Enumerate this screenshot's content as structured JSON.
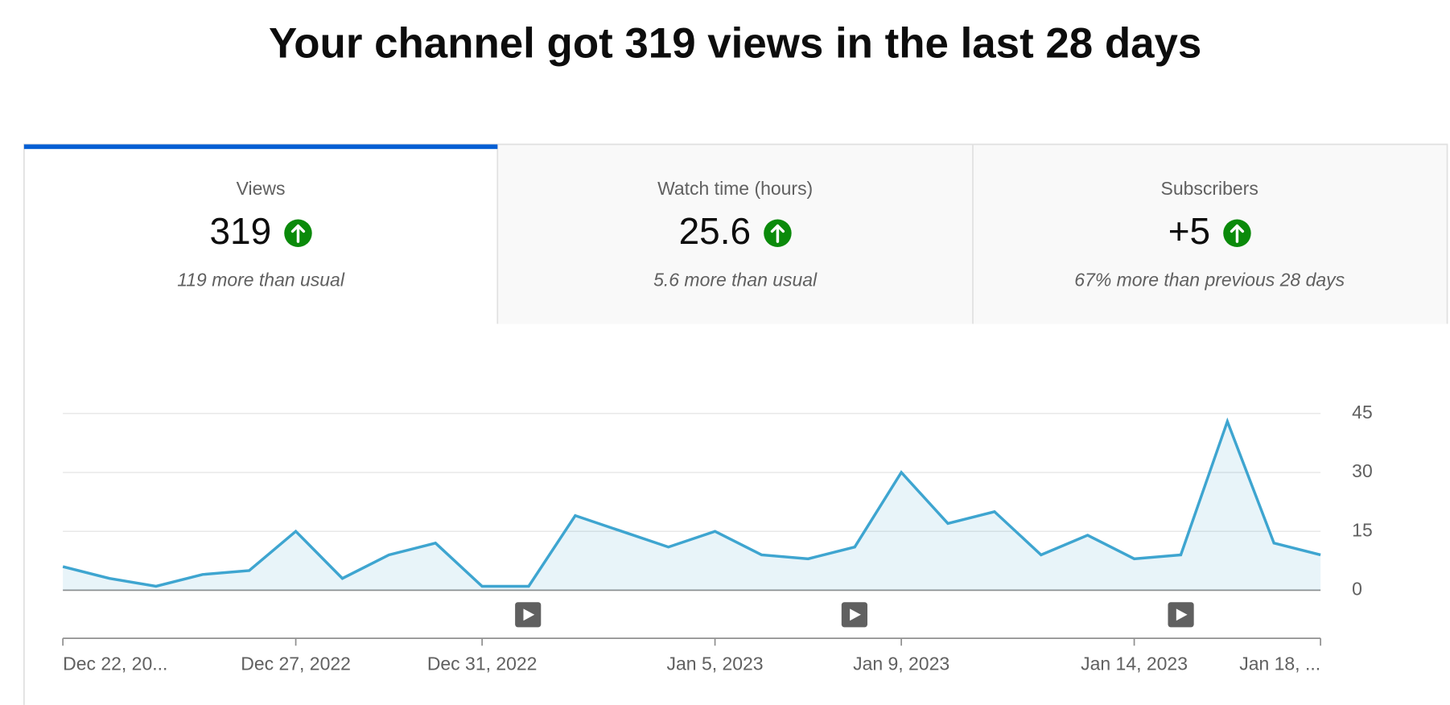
{
  "header": {
    "title": "Your channel got 319 views in the last 28 days"
  },
  "tabs": [
    {
      "label": "Views",
      "value": "319",
      "note": "119 more than usual"
    },
    {
      "label": "Watch time (hours)",
      "value": "25.6",
      "note": "5.6 more than usual"
    },
    {
      "label": "Subscribers",
      "value": "+5",
      "note": "67% more than previous 28 days"
    }
  ],
  "chart_data": {
    "type": "area",
    "categories": [
      "Dec 22, 20...",
      null,
      null,
      null,
      null,
      "Dec 27, 2022",
      null,
      null,
      null,
      "Dec 31, 2022",
      null,
      null,
      null,
      null,
      "Jan 5, 2023",
      null,
      null,
      null,
      "Jan 9, 2023",
      null,
      null,
      null,
      null,
      "Jan 14, 2023",
      null,
      null,
      null,
      "Jan 18, ..."
    ],
    "series": [
      {
        "name": "Views",
        "color": "#3ea5d0",
        "values": [
          6,
          3,
          1,
          4,
          5,
          15,
          3,
          9,
          12,
          1,
          1,
          19,
          15,
          11,
          15,
          9,
          8,
          11,
          30,
          17,
          20,
          9,
          14,
          8,
          9,
          43,
          12,
          9
        ]
      }
    ],
    "ylim": [
      0,
      45
    ],
    "yticks": [
      0,
      15,
      30,
      45
    ],
    "grid": true
  }
}
